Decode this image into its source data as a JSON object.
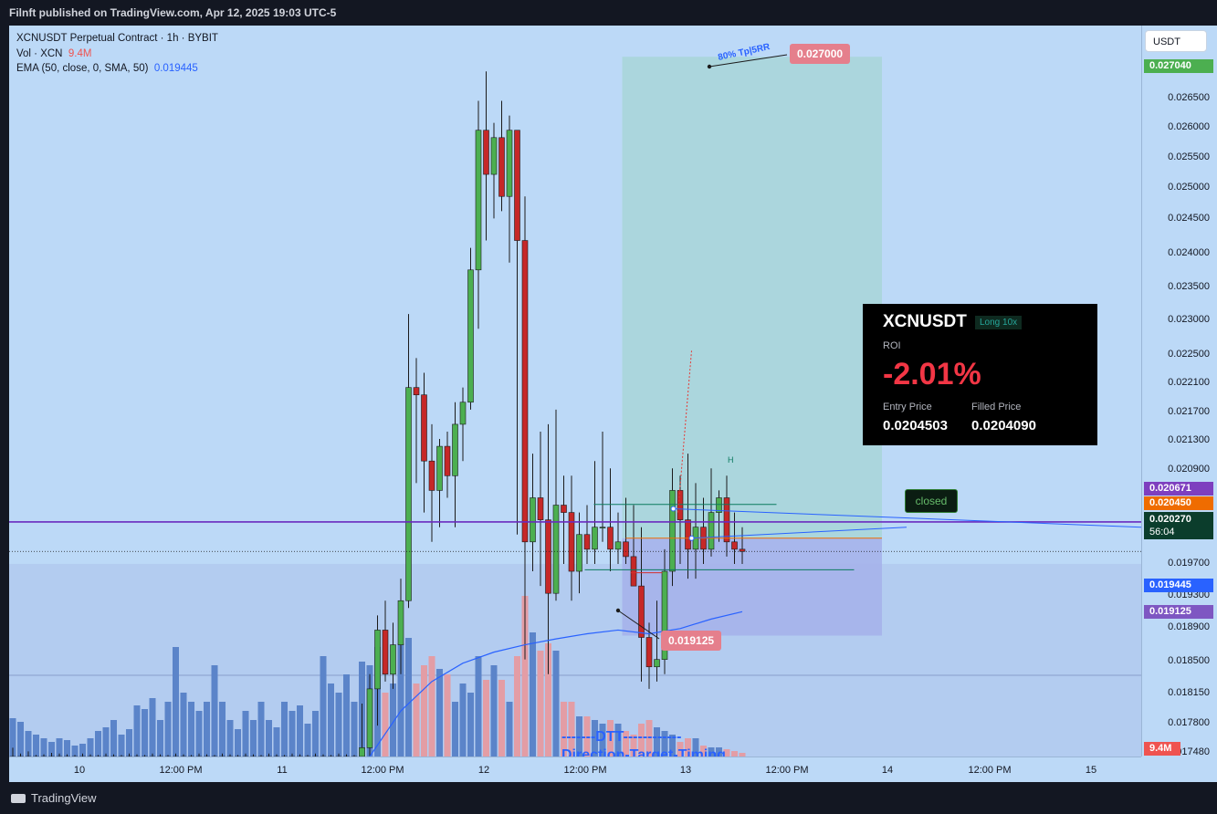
{
  "header": {
    "publisher": "Filnft published on TradingView.com, Apr 12, 2025 19:03 UTC-5"
  },
  "legend": {
    "line1": "XCNUSDT Perpetual Contract · 1h · BYBIT",
    "vol_label": "Vol · XCN",
    "vol_value": "9.4M",
    "ema_label": "EMA (50, close, 0, SMA, 50)",
    "ema_value": "0.019445"
  },
  "currency_button": "USDT",
  "price_ticks": [
    "0.026500",
    "0.026000",
    "0.025500",
    "0.025000",
    "0.024500",
    "0.024000",
    "0.023500",
    "0.023000",
    "0.022500",
    "0.022100",
    "0.021700",
    "0.021300",
    "0.020900",
    "0.019700",
    "0.019300",
    "0.018900",
    "0.018500",
    "0.018150",
    "0.017800",
    "0.017480"
  ],
  "price_tags": {
    "top": "0.027040",
    "line": "0.020671",
    "orange": "0.020450",
    "current": "0.020270",
    "countdown": "56:04",
    "ema": "0.019445",
    "stop": "0.019125",
    "volume": "9.4M"
  },
  "time_ticks": [
    "10",
    "12:00 PM",
    "11",
    "12:00 PM",
    "12",
    "12:00 PM",
    "13",
    "12:00 PM",
    "14",
    "12:00 PM",
    "15"
  ],
  "annotations": {
    "tp_label": "80% Tp|5RR",
    "tp_price": "0.027000",
    "sl_price": "0.019125",
    "h_label": "H",
    "closed": "closed",
    "dtt_line1": "-------DTT------------",
    "dtt_line2": "Direction-Target-Timing"
  },
  "trade_card": {
    "symbol": "XCNUSDT",
    "badge": "Long 10x",
    "roi_label": "ROI",
    "roi": "-2.01%",
    "entry_label": "Entry Price",
    "filled_label": "Filled Price",
    "entry": "0.0204503",
    "filled": "0.0204090"
  },
  "footer": {
    "brand": "TradingView"
  },
  "colors": {
    "up": "#4caf50",
    "down": "#c62828",
    "vol_up": "#5b84c9",
    "vol_down": "#e39da5",
    "ema": "#2962ff",
    "bg": "#bcd9f7"
  },
  "chart_data": {
    "type": "candlestick",
    "symbol": "XCNUSDT",
    "interval": "1h",
    "ylim": [
      0.01748,
      0.02735
    ],
    "candles": [
      {
        "o": 0.01748,
        "h": 0.0176,
        "l": 0.01748,
        "c": 0.01748
      },
      {
        "o": 0.01748,
        "h": 0.01752,
        "l": 0.01748,
        "c": 0.01748
      },
      {
        "o": 0.01748,
        "h": 0.01755,
        "l": 0.01748,
        "c": 0.01748
      },
      {
        "o": 0.01748,
        "h": 0.0175,
        "l": 0.01748,
        "c": 0.01748
      },
      {
        "o": 0.01748,
        "h": 0.01751,
        "l": 0.01748,
        "c": 0.01748
      },
      {
        "o": 0.01748,
        "h": 0.01753,
        "l": 0.01748,
        "c": 0.01748
      },
      {
        "o": 0.01748,
        "h": 0.01752,
        "l": 0.01748,
        "c": 0.01748
      },
      {
        "o": 0.01748,
        "h": 0.01751,
        "l": 0.01748,
        "c": 0.01748
      },
      {
        "o": 0.01748,
        "h": 0.0175,
        "l": 0.01748,
        "c": 0.01748
      },
      {
        "o": 0.01748,
        "h": 0.01752,
        "l": 0.01748,
        "c": 0.01748
      },
      {
        "o": 0.01748,
        "h": 0.01751,
        "l": 0.01748,
        "c": 0.01748
      },
      {
        "o": 0.01748,
        "h": 0.0175,
        "l": 0.01748,
        "c": 0.01748
      },
      {
        "o": 0.01748,
        "h": 0.01752,
        "l": 0.01748,
        "c": 0.01748
      },
      {
        "o": 0.01748,
        "h": 0.01751,
        "l": 0.01748,
        "c": 0.01748
      },
      {
        "o": 0.01748,
        "h": 0.0175,
        "l": 0.01748,
        "c": 0.01748
      },
      {
        "o": 0.01748,
        "h": 0.01752,
        "l": 0.01748,
        "c": 0.01748
      },
      {
        "o": 0.01748,
        "h": 0.01751,
        "l": 0.01748,
        "c": 0.01748
      },
      {
        "o": 0.01748,
        "h": 0.0175,
        "l": 0.01748,
        "c": 0.01748
      },
      {
        "o": 0.01748,
        "h": 0.01752,
        "l": 0.01748,
        "c": 0.01748
      },
      {
        "o": 0.01748,
        "h": 0.01751,
        "l": 0.01748,
        "c": 0.01748
      },
      {
        "o": 0.01748,
        "h": 0.0175,
        "l": 0.01748,
        "c": 0.01748
      },
      {
        "o": 0.01748,
        "h": 0.01752,
        "l": 0.01748,
        "c": 0.01748
      },
      {
        "o": 0.01748,
        "h": 0.01751,
        "l": 0.01748,
        "c": 0.01748
      },
      {
        "o": 0.01748,
        "h": 0.0175,
        "l": 0.01748,
        "c": 0.01748
      },
      {
        "o": 0.01748,
        "h": 0.01752,
        "l": 0.01748,
        "c": 0.01748
      },
      {
        "o": 0.01748,
        "h": 0.01751,
        "l": 0.01748,
        "c": 0.01748
      },
      {
        "o": 0.01748,
        "h": 0.0175,
        "l": 0.01748,
        "c": 0.01748
      },
      {
        "o": 0.01748,
        "h": 0.01752,
        "l": 0.01748,
        "c": 0.01748
      },
      {
        "o": 0.01748,
        "h": 0.01751,
        "l": 0.01748,
        "c": 0.01748
      },
      {
        "o": 0.01748,
        "h": 0.0175,
        "l": 0.01748,
        "c": 0.01748
      },
      {
        "o": 0.01748,
        "h": 0.01752,
        "l": 0.01748,
        "c": 0.01748
      },
      {
        "o": 0.01748,
        "h": 0.01751,
        "l": 0.01748,
        "c": 0.01748
      },
      {
        "o": 0.01748,
        "h": 0.0175,
        "l": 0.01748,
        "c": 0.01748
      },
      {
        "o": 0.01748,
        "h": 0.01752,
        "l": 0.01748,
        "c": 0.01748
      },
      {
        "o": 0.01748,
        "h": 0.01751,
        "l": 0.01748,
        "c": 0.01748
      },
      {
        "o": 0.01748,
        "h": 0.0175,
        "l": 0.01748,
        "c": 0.01748
      },
      {
        "o": 0.01748,
        "h": 0.01752,
        "l": 0.01748,
        "c": 0.01748
      },
      {
        "o": 0.01748,
        "h": 0.01751,
        "l": 0.01748,
        "c": 0.01748
      },
      {
        "o": 0.01748,
        "h": 0.0175,
        "l": 0.01748,
        "c": 0.01748
      },
      {
        "o": 0.01748,
        "h": 0.01752,
        "l": 0.01748,
        "c": 0.01748
      },
      {
        "o": 0.01748,
        "h": 0.01751,
        "l": 0.01748,
        "c": 0.01748
      },
      {
        "o": 0.01748,
        "h": 0.0175,
        "l": 0.01748,
        "c": 0.01748
      },
      {
        "o": 0.01748,
        "h": 0.01752,
        "l": 0.01748,
        "c": 0.01748
      },
      {
        "o": 0.01748,
        "h": 0.01751,
        "l": 0.01748,
        "c": 0.01748
      },
      {
        "o": 0.01748,
        "h": 0.0175,
        "l": 0.01748,
        "c": 0.01748
      },
      {
        "o": 0.01748,
        "h": 0.0182,
        "l": 0.01748,
        "c": 0.0176
      },
      {
        "o": 0.0176,
        "h": 0.0186,
        "l": 0.01748,
        "c": 0.0184
      },
      {
        "o": 0.0184,
        "h": 0.0194,
        "l": 0.0179,
        "c": 0.0192
      },
      {
        "o": 0.0192,
        "h": 0.0196,
        "l": 0.0185,
        "c": 0.0186
      },
      {
        "o": 0.0186,
        "h": 0.0193,
        "l": 0.0184,
        "c": 0.019
      },
      {
        "o": 0.019,
        "h": 0.0199,
        "l": 0.0186,
        "c": 0.0196
      },
      {
        "o": 0.0196,
        "h": 0.0235,
        "l": 0.0195,
        "c": 0.0225
      },
      {
        "o": 0.0225,
        "h": 0.0229,
        "l": 0.0212,
        "c": 0.0224
      },
      {
        "o": 0.0224,
        "h": 0.0227,
        "l": 0.0208,
        "c": 0.0215
      },
      {
        "o": 0.0215,
        "h": 0.022,
        "l": 0.0204,
        "c": 0.0211
      },
      {
        "o": 0.0211,
        "h": 0.0218,
        "l": 0.0206,
        "c": 0.0217
      },
      {
        "o": 0.0217,
        "h": 0.0219,
        "l": 0.021,
        "c": 0.0213
      },
      {
        "o": 0.0213,
        "h": 0.0223,
        "l": 0.0206,
        "c": 0.022
      },
      {
        "o": 0.022,
        "h": 0.0225,
        "l": 0.0215,
        "c": 0.0223
      },
      {
        "o": 0.0223,
        "h": 0.0244,
        "l": 0.0222,
        "c": 0.0241
      },
      {
        "o": 0.0241,
        "h": 0.0264,
        "l": 0.0233,
        "c": 0.026
      },
      {
        "o": 0.026,
        "h": 0.0268,
        "l": 0.0245,
        "c": 0.0254
      },
      {
        "o": 0.0254,
        "h": 0.0261,
        "l": 0.0248,
        "c": 0.0259
      },
      {
        "o": 0.0259,
        "h": 0.0264,
        "l": 0.0249,
        "c": 0.0251
      },
      {
        "o": 0.0251,
        "h": 0.0262,
        "l": 0.0242,
        "c": 0.026
      },
      {
        "o": 0.026,
        "h": 0.026,
        "l": 0.0205,
        "c": 0.0245
      },
      {
        "o": 0.0245,
        "h": 0.0251,
        "l": 0.0188,
        "c": 0.0204
      },
      {
        "o": 0.0204,
        "h": 0.0216,
        "l": 0.02,
        "c": 0.021
      },
      {
        "o": 0.021,
        "h": 0.0219,
        "l": 0.0198,
        "c": 0.0207
      },
      {
        "o": 0.0207,
        "h": 0.022,
        "l": 0.0186,
        "c": 0.0197
      },
      {
        "o": 0.0197,
        "h": 0.0222,
        "l": 0.0196,
        "c": 0.0209
      },
      {
        "o": 0.0209,
        "h": 0.0213,
        "l": 0.0201,
        "c": 0.0208
      },
      {
        "o": 0.0208,
        "h": 0.0213,
        "l": 0.0196,
        "c": 0.02
      },
      {
        "o": 0.02,
        "h": 0.0208,
        "l": 0.0197,
        "c": 0.0205
      },
      {
        "o": 0.0205,
        "h": 0.0209,
        "l": 0.0201,
        "c": 0.0203
      },
      {
        "o": 0.0203,
        "h": 0.0215,
        "l": 0.0201,
        "c": 0.0206
      },
      {
        "o": 0.0206,
        "h": 0.0219,
        "l": 0.0204,
        "c": 0.0206
      },
      {
        "o": 0.0206,
        "h": 0.0214,
        "l": 0.02,
        "c": 0.0203
      },
      {
        "o": 0.0203,
        "h": 0.0208,
        "l": 0.0201,
        "c": 0.0204
      },
      {
        "o": 0.0204,
        "h": 0.021,
        "l": 0.0201,
        "c": 0.0202
      },
      {
        "o": 0.0202,
        "h": 0.0209,
        "l": 0.0198,
        "c": 0.0198
      },
      {
        "o": 0.0198,
        "h": 0.0206,
        "l": 0.0185,
        "c": 0.0191
      },
      {
        "o": 0.0191,
        "h": 0.0193,
        "l": 0.0184,
        "c": 0.0187
      },
      {
        "o": 0.0187,
        "h": 0.0196,
        "l": 0.0185,
        "c": 0.0188
      },
      {
        "o": 0.0188,
        "h": 0.0203,
        "l": 0.0186,
        "c": 0.02
      },
      {
        "o": 0.02,
        "h": 0.0214,
        "l": 0.0198,
        "c": 0.0211
      },
      {
        "o": 0.0211,
        "h": 0.0213,
        "l": 0.0201,
        "c": 0.0207
      },
      {
        "o": 0.0207,
        "h": 0.0216,
        "l": 0.0199,
        "c": 0.0203
      },
      {
        "o": 0.0203,
        "h": 0.0212,
        "l": 0.0199,
        "c": 0.0206
      },
      {
        "o": 0.0206,
        "h": 0.021,
        "l": 0.0201,
        "c": 0.0203
      },
      {
        "o": 0.0203,
        "h": 0.0214,
        "l": 0.0202,
        "c": 0.0208
      },
      {
        "o": 0.0208,
        "h": 0.0211,
        "l": 0.0204,
        "c": 0.021
      },
      {
        "o": 0.021,
        "h": 0.0213,
        "l": 0.0202,
        "c": 0.0204
      },
      {
        "o": 0.0204,
        "h": 0.0208,
        "l": 0.0201,
        "c": 0.0203
      },
      {
        "o": 0.0203,
        "h": 0.0206,
        "l": 0.0201,
        "c": 0.02027
      }
    ],
    "volume": [
      0.21,
      0.19,
      0.14,
      0.12,
      0.1,
      0.08,
      0.1,
      0.09,
      0.06,
      0.07,
      0.1,
      0.14,
      0.16,
      0.2,
      0.12,
      0.15,
      0.28,
      0.26,
      0.32,
      0.2,
      0.3,
      0.6,
      0.35,
      0.3,
      0.25,
      0.3,
      0.5,
      0.3,
      0.2,
      0.15,
      0.25,
      0.2,
      0.3,
      0.2,
      0.16,
      0.3,
      0.25,
      0.28,
      0.18,
      0.25,
      0.55,
      0.4,
      0.35,
      0.45,
      0.3,
      0.52,
      0.5,
      0.6,
      0.35,
      0.4,
      0.62,
      0.65,
      0.4,
      0.5,
      0.55,
      0.48,
      0.45,
      0.3,
      0.4,
      0.35,
      0.55,
      0.42,
      0.5,
      0.42,
      0.3,
      0.55,
      0.88,
      0.68,
      0.58,
      0.62,
      0.58,
      0.3,
      0.3,
      0.22,
      0.22,
      0.2,
      0.18,
      0.2,
      0.18,
      0.14,
      0.12,
      0.18,
      0.2,
      0.16,
      0.14,
      0.12,
      0.08,
      0.1,
      0.1,
      0.06,
      0.05,
      0.05,
      0.04,
      0.03,
      0.02
    ],
    "ema": [
      {
        "i": 46,
        "v": 0.01748
      },
      {
        "i": 50,
        "v": 0.0181
      },
      {
        "i": 54,
        "v": 0.0185
      },
      {
        "i": 58,
        "v": 0.01875
      },
      {
        "i": 62,
        "v": 0.0189
      },
      {
        "i": 66,
        "v": 0.019
      },
      {
        "i": 70,
        "v": 0.01908
      },
      {
        "i": 74,
        "v": 0.01915
      },
      {
        "i": 78,
        "v": 0.0192
      },
      {
        "i": 82,
        "v": 0.01915
      },
      {
        "i": 86,
        "v": 0.01922
      },
      {
        "i": 90,
        "v": 0.01935
      },
      {
        "i": 94,
        "v": 0.01945
      }
    ],
    "position": {
      "side": "Long",
      "entry": 0.02045,
      "target": 0.027,
      "stop": 0.019125,
      "start_index": 79,
      "end_index": 112
    },
    "horizontal_line": 0.020671,
    "current_price": 0.02027
  }
}
